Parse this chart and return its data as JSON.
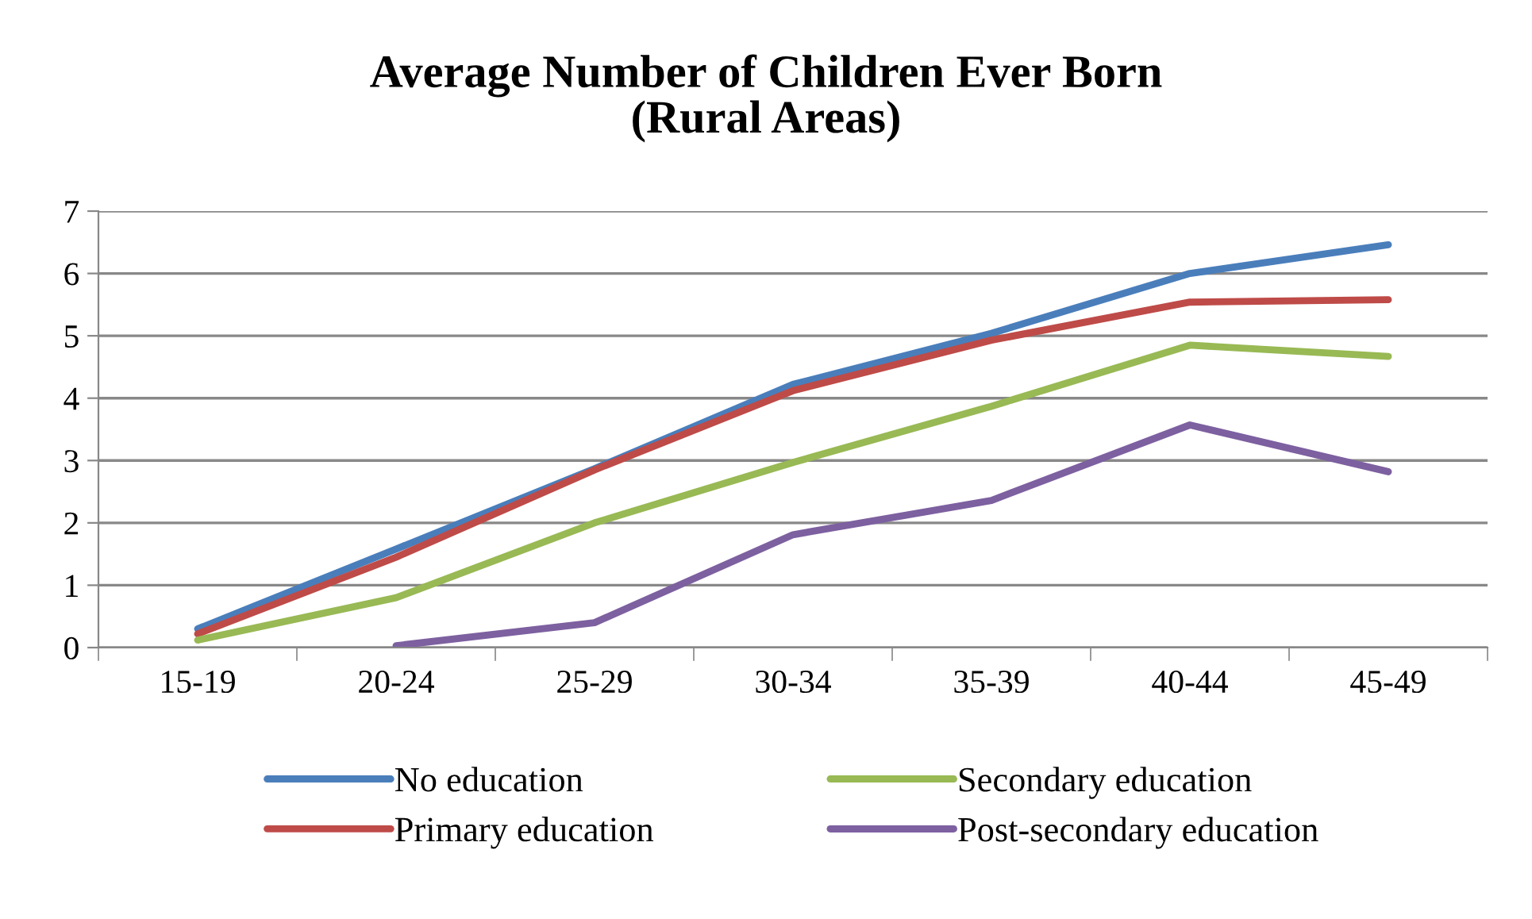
{
  "chart_data": {
    "type": "line",
    "title": "Average Number of Children Ever Born\n(Rural Areas)",
    "categories": [
      "15-19",
      "20-24",
      "25-29",
      "30-34",
      "35-39",
      "40-44",
      "45-49"
    ],
    "series": [
      {
        "name": "No education",
        "color": "#4a7ebb",
        "values": [
          0.3,
          1.58,
          2.87,
          4.22,
          5.04,
          6.0,
          6.46
        ]
      },
      {
        "name": "Primary education",
        "color": "#be4b48",
        "values": [
          0.22,
          1.45,
          2.85,
          4.12,
          4.93,
          5.54,
          5.58
        ]
      },
      {
        "name": "Secondary education",
        "color": "#98b954",
        "values": [
          0.12,
          0.8,
          2.0,
          2.97,
          3.87,
          4.85,
          4.67
        ]
      },
      {
        "name": "Post-secondary education",
        "color": "#7d60a0",
        "values": [
          null,
          0.03,
          0.4,
          1.81,
          2.36,
          3.57,
          2.82
        ]
      }
    ],
    "ylim": [
      0,
      7
    ],
    "yticks": [
      0,
      1,
      2,
      3,
      4,
      5,
      6,
      7
    ],
    "grid": "y",
    "legend": "bottom",
    "marker": "none",
    "line_style": "solid"
  }
}
